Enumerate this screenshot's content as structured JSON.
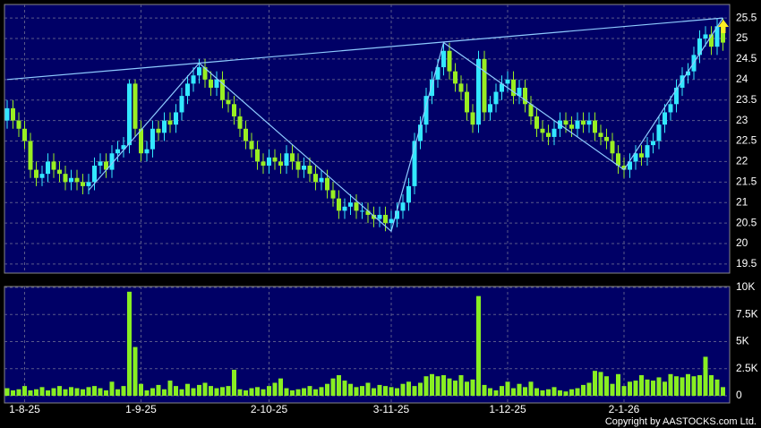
{
  "chart_data": {
    "type": "candlestick",
    "categories": [
      null,
      null,
      null,
      "1-8-25",
      null,
      null,
      null,
      null,
      null,
      null,
      null,
      null,
      null,
      null,
      null,
      null,
      null,
      null,
      null,
      null,
      null,
      null,
      null,
      "1-9-25",
      null,
      null,
      null,
      null,
      null,
      null,
      null,
      null,
      null,
      null,
      null,
      null,
      null,
      null,
      null,
      null,
      null,
      null,
      null,
      null,
      null,
      "2-10-25",
      null,
      null,
      null,
      null,
      null,
      null,
      null,
      null,
      null,
      null,
      null,
      null,
      null,
      null,
      null,
      null,
      null,
      null,
      null,
      null,
      "3-11-25",
      null,
      null,
      null,
      null,
      null,
      null,
      null,
      null,
      null,
      null,
      null,
      null,
      null,
      null,
      null,
      null,
      null,
      null,
      null,
      "1-12-25",
      null,
      null,
      null,
      null,
      null,
      null,
      null,
      null,
      null,
      null,
      null,
      null,
      null,
      null,
      null,
      null,
      null,
      null,
      null,
      "2-1-26",
      null,
      null,
      null,
      null,
      null,
      null,
      null,
      null,
      null,
      null,
      null,
      null,
      null,
      null,
      null,
      null,
      null
    ],
    "open": [
      23.0,
      23.3,
      23.0,
      22.8,
      22.5,
      21.8,
      21.6,
      21.7,
      22.0,
      21.8,
      21.7,
      21.5,
      21.6,
      21.5,
      21.4,
      21.5,
      21.9,
      22.0,
      21.8,
      22.2,
      22.3,
      22.4,
      23.9,
      22.8,
      22.2,
      22.3,
      22.8,
      22.7,
      23.0,
      22.9,
      23.2,
      23.6,
      23.9,
      24.1,
      24.3,
      24.0,
      23.8,
      24.0,
      23.5,
      23.4,
      23.1,
      22.8,
      22.5,
      22.3,
      22.0,
      21.9,
      22.1,
      22.0,
      21.9,
      22.2,
      22.0,
      21.8,
      21.9,
      21.7,
      21.5,
      21.6,
      21.3,
      21.1,
      20.8,
      20.9,
      21.0,
      20.8,
      20.8,
      20.7,
      20.6,
      20.7,
      20.5,
      20.6,
      20.8,
      21.0,
      21.4,
      22.5,
      22.9,
      23.6,
      24.0,
      24.3,
      24.7,
      24.2,
      23.9,
      23.7,
      23.2,
      22.9,
      24.5,
      23.2,
      23.4,
      23.7,
      23.9,
      24.0,
      23.6,
      23.8,
      23.4,
      23.1,
      22.8,
      22.7,
      22.6,
      22.8,
      23.0,
      22.9,
      22.8,
      23.0,
      22.9,
      23.0,
      22.7,
      22.6,
      22.5,
      22.2,
      21.9,
      21.8,
      22.0,
      22.2,
      22.1,
      22.4,
      22.5,
      22.9,
      23.2,
      23.4,
      23.8,
      24.1,
      24.2,
      24.6,
      25.0,
      25.1,
      24.8,
      25.3
    ],
    "high": [
      23.5,
      23.5,
      23.2,
      23.0,
      22.7,
      22.0,
      21.9,
      22.2,
      22.2,
      22.0,
      21.9,
      21.8,
      21.8,
      21.7,
      21.7,
      22.1,
      22.2,
      22.2,
      22.4,
      22.5,
      22.6,
      24.0,
      24.0,
      23.0,
      22.5,
      23.0,
      23.0,
      23.2,
      23.2,
      23.4,
      23.8,
      24.1,
      24.3,
      24.5,
      24.5,
      24.2,
      24.2,
      24.2,
      23.7,
      23.6,
      23.3,
      23.0,
      22.7,
      22.5,
      22.2,
      22.3,
      22.3,
      22.2,
      22.4,
      22.4,
      22.2,
      22.1,
      22.1,
      21.9,
      21.8,
      21.8,
      21.5,
      21.3,
      21.1,
      21.2,
      21.2,
      21.0,
      21.0,
      20.9,
      20.9,
      20.9,
      20.8,
      21.0,
      21.2,
      21.6,
      22.7,
      23.1,
      23.8,
      24.2,
      24.5,
      24.9,
      24.9,
      24.4,
      24.1,
      23.9,
      23.4,
      24.7,
      24.7,
      23.6,
      23.9,
      24.1,
      24.2,
      24.2,
      24.0,
      24.0,
      23.6,
      23.3,
      23.0,
      22.9,
      23.0,
      23.2,
      23.2,
      23.1,
      23.2,
      23.2,
      23.2,
      23.2,
      22.9,
      22.8,
      22.7,
      22.4,
      22.1,
      22.2,
      22.4,
      22.4,
      22.6,
      22.7,
      23.1,
      23.4,
      23.6,
      24.0,
      24.3,
      24.4,
      24.8,
      25.2,
      25.3,
      25.3,
      25.5,
      25.5
    ],
    "low": [
      22.8,
      22.8,
      22.6,
      22.3,
      21.6,
      21.4,
      21.4,
      21.5,
      21.6,
      21.5,
      21.3,
      21.3,
      21.3,
      21.2,
      21.2,
      21.3,
      21.7,
      21.6,
      21.6,
      22.0,
      22.1,
      22.2,
      22.6,
      22.0,
      22.0,
      22.1,
      22.5,
      22.5,
      22.7,
      22.7,
      23.0,
      23.4,
      23.7,
      23.9,
      23.8,
      23.6,
      23.6,
      23.3,
      23.2,
      22.9,
      22.6,
      22.3,
      22.1,
      21.8,
      21.7,
      21.7,
      21.8,
      21.7,
      21.7,
      21.8,
      21.6,
      21.6,
      21.5,
      21.3,
      21.3,
      21.1,
      20.9,
      20.6,
      20.6,
      20.7,
      20.6,
      20.6,
      20.5,
      20.4,
      20.4,
      20.3,
      20.3,
      20.4,
      20.6,
      20.8,
      21.2,
      22.3,
      22.7,
      23.4,
      23.8,
      24.1,
      24.0,
      23.7,
      23.5,
      23.0,
      22.7,
      22.7,
      23.0,
      23.0,
      23.2,
      23.5,
      23.7,
      23.4,
      23.4,
      23.2,
      22.9,
      22.6,
      22.5,
      22.4,
      22.4,
      22.6,
      22.7,
      22.6,
      22.6,
      22.7,
      22.7,
      22.5,
      22.4,
      22.3,
      22.0,
      21.7,
      21.6,
      21.6,
      21.8,
      21.9,
      21.9,
      22.2,
      22.3,
      22.7,
      23.0,
      23.2,
      23.6,
      23.9,
      24.0,
      24.4,
      24.8,
      24.6,
      24.6,
      24.7
    ],
    "close": [
      23.3,
      23.0,
      22.8,
      22.5,
      21.8,
      21.6,
      21.7,
      22.0,
      21.8,
      21.7,
      21.5,
      21.6,
      21.5,
      21.4,
      21.5,
      21.9,
      22.0,
      21.8,
      22.2,
      22.3,
      22.4,
      23.9,
      22.8,
      22.2,
      22.3,
      22.8,
      22.7,
      23.0,
      22.9,
      23.2,
      23.6,
      23.9,
      24.1,
      24.3,
      24.0,
      23.8,
      24.0,
      23.5,
      23.4,
      23.1,
      22.8,
      22.5,
      22.3,
      22.0,
      21.9,
      22.1,
      22.0,
      21.9,
      22.2,
      22.0,
      21.8,
      21.9,
      21.7,
      21.5,
      21.6,
      21.3,
      21.1,
      20.8,
      20.9,
      21.0,
      20.8,
      20.8,
      20.7,
      20.6,
      20.7,
      20.5,
      20.6,
      20.8,
      21.0,
      21.4,
      22.5,
      22.9,
      23.6,
      24.0,
      24.3,
      24.7,
      24.2,
      23.9,
      23.7,
      23.2,
      22.9,
      24.5,
      23.2,
      23.4,
      23.7,
      23.9,
      24.0,
      23.6,
      23.8,
      23.4,
      23.1,
      22.8,
      22.7,
      22.6,
      22.8,
      23.0,
      22.9,
      22.8,
      23.0,
      22.9,
      23.0,
      22.7,
      22.6,
      22.5,
      22.2,
      21.9,
      21.8,
      22.0,
      22.2,
      22.1,
      22.4,
      22.5,
      22.9,
      23.2,
      23.4,
      23.8,
      24.1,
      24.2,
      24.6,
      25.0,
      25.1,
      24.8,
      25.3,
      24.9
    ],
    "up_color": "#33e8ff",
    "down_color": "#99ee22",
    "ylim": [
      19.28,
      25.83
    ],
    "yticks": [
      19.5,
      20,
      20.5,
      21,
      21.5,
      22,
      22.5,
      23,
      23.5,
      24,
      24.5,
      25,
      25.5
    ],
    "grid": true,
    "trendline_color": "#8ecbff",
    "trendlines": [
      {
        "x": [
          0,
          123
        ],
        "y": [
          24.0,
          25.5
        ]
      },
      {
        "x": [
          14,
          33,
          66,
          75,
          106,
          123
        ],
        "y": [
          21.3,
          24.4,
          20.3,
          24.9,
          21.8,
          25.5
        ]
      }
    ],
    "volume": {
      "color": "#88ee22",
      "values": [
        700,
        500,
        600,
        900,
        500,
        600,
        800,
        500,
        700,
        900,
        600,
        800,
        700,
        600,
        800,
        900,
        700,
        500,
        1300,
        600,
        900,
        9600,
        4500,
        1100,
        500,
        700,
        1000,
        600,
        1400,
        900,
        600,
        1100,
        700,
        1000,
        1200,
        900,
        700,
        800,
        900,
        2400,
        600,
        500,
        700,
        800,
        600,
        900,
        1200,
        1600,
        700,
        500,
        600,
        700,
        900,
        600,
        800,
        1100,
        1600,
        1900,
        1400,
        1100,
        800,
        900,
        1200,
        700,
        1000,
        900,
        800,
        700,
        1100,
        1300,
        900,
        1200,
        1800,
        2000,
        1800,
        1900,
        1600,
        1400,
        1900,
        1300,
        1500,
        9200,
        1000,
        700,
        500,
        900,
        1300,
        700,
        1100,
        800,
        1300,
        700,
        500,
        600,
        800,
        500,
        400,
        600,
        700,
        1000,
        1200,
        2300,
        2200,
        1800,
        1100,
        2000,
        900,
        1300,
        1400,
        1900,
        1500,
        1400,
        1700,
        1300,
        2000,
        1800,
        1700,
        2000,
        1800,
        1900,
        3600,
        1900,
        1500,
        800
      ],
      "ylim": [
        -660,
        10080
      ],
      "yticks": [
        0,
        {
          "value": 2500,
          "label": "2.5K"
        },
        {
          "value": 5000,
          "label": "5K"
        },
        {
          "value": 7500,
          "label": "7.5K"
        },
        {
          "value": 10000,
          "label": "10K"
        }
      ]
    },
    "copyright": "Copyright by AASTOCKS.com Ltd."
  }
}
